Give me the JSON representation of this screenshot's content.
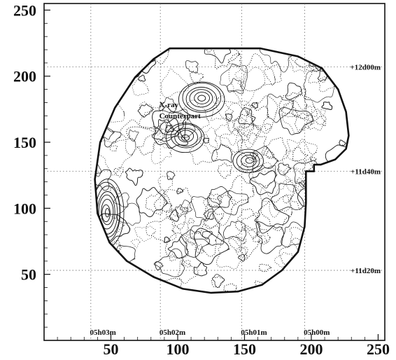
{
  "chart_data": {
    "type": "contour",
    "xlim": [
      0,
      255
    ],
    "ylim": [
      0,
      255
    ],
    "x_ticks": [
      50,
      100,
      150,
      200,
      250
    ],
    "y_ticks": [
      50,
      100,
      150,
      200,
      250
    ],
    "x_tick_labels": [
      "50",
      "100",
      "150",
      "200",
      "250"
    ],
    "y_tick_labels": [
      "50",
      "100",
      "150",
      "200",
      "250"
    ],
    "grid": "dotted coordinate lines",
    "ra_grid": [
      {
        "label": "05h03m",
        "x": 35
      },
      {
        "label": "05h02m",
        "x": 87
      },
      {
        "label": "05h01m",
        "x": 148
      },
      {
        "label": "05h00m",
        "x": 195
      }
    ],
    "dec_grid": [
      {
        "label": "+12d00m",
        "y": 207
      },
      {
        "label": "+11d40m",
        "y": 128
      },
      {
        "label": "+11d20m",
        "y": 53
      }
    ],
    "annotation": {
      "lines": [
        "X-ray",
        "Counterpart"
      ],
      "text_at": [
        60,
        168
      ],
      "arrow_to": [
        105,
        152
      ]
    },
    "field_boundary": [
      [
        94,
        221
      ],
      [
        127,
        221
      ],
      [
        162,
        221
      ],
      [
        190,
        215
      ],
      [
        208,
        206
      ],
      [
        220,
        190
      ],
      [
        226,
        173
      ],
      [
        228,
        155
      ],
      [
        226,
        145
      ],
      [
        218,
        137
      ],
      [
        207,
        133
      ],
      [
        202,
        133
      ],
      [
        202,
        128
      ],
      [
        196,
        128
      ],
      [
        196,
        118
      ],
      [
        196,
        104
      ],
      [
        195,
        86
      ],
      [
        190,
        67
      ],
      [
        178,
        53
      ],
      [
        163,
        42
      ],
      [
        145,
        37
      ],
      [
        125,
        36
      ],
      [
        104,
        39
      ],
      [
        82,
        48
      ],
      [
        62,
        60
      ],
      [
        49,
        74
      ],
      [
        40,
        96
      ],
      [
        38,
        122
      ],
      [
        42,
        150
      ],
      [
        53,
        176
      ],
      [
        68,
        199
      ],
      [
        82,
        213
      ]
    ],
    "source_peaks": [
      {
        "name": "x-ray-counterpart",
        "center": [
          106,
          154
        ],
        "levels": 5
      },
      {
        "name": "north-blob",
        "center": [
          118,
          183
        ],
        "levels": 6
      },
      {
        "name": "east-blob",
        "center": [
          153,
          136
        ],
        "levels": 4
      },
      {
        "name": "west-edge-source",
        "center": [
          47,
          97
        ],
        "levels": 8
      }
    ]
  }
}
